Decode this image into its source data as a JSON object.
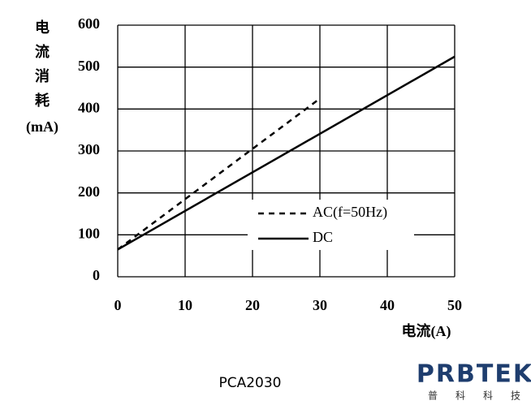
{
  "chart_data": {
    "type": "line",
    "y_label_lines": [
      "电",
      "流",
      "消",
      "耗"
    ],
    "y_unit": "(mA)",
    "x_label": "电流(A)",
    "xlim": [
      0,
      50
    ],
    "xticks": [
      0,
      10,
      20,
      30,
      40,
      50
    ],
    "ylim": [
      0,
      600
    ],
    "yticks": [
      0,
      100,
      200,
      300,
      400,
      500,
      600
    ],
    "grid": true,
    "series": [
      {
        "name": "AC(f=50Hz)",
        "color": "#000000",
        "dash": "dashed",
        "x": [
          0,
          30
        ],
        "values": [
          65,
          425
        ]
      },
      {
        "name": "DC",
        "color": "#000000",
        "dash": "solid",
        "x": [
          0,
          50
        ],
        "values": [
          65,
          525
        ]
      }
    ]
  },
  "footer": {
    "model": "PCA2030",
    "logo": "PRBTEK",
    "logo_sub": [
      "普",
      "科",
      "科",
      "技"
    ]
  }
}
